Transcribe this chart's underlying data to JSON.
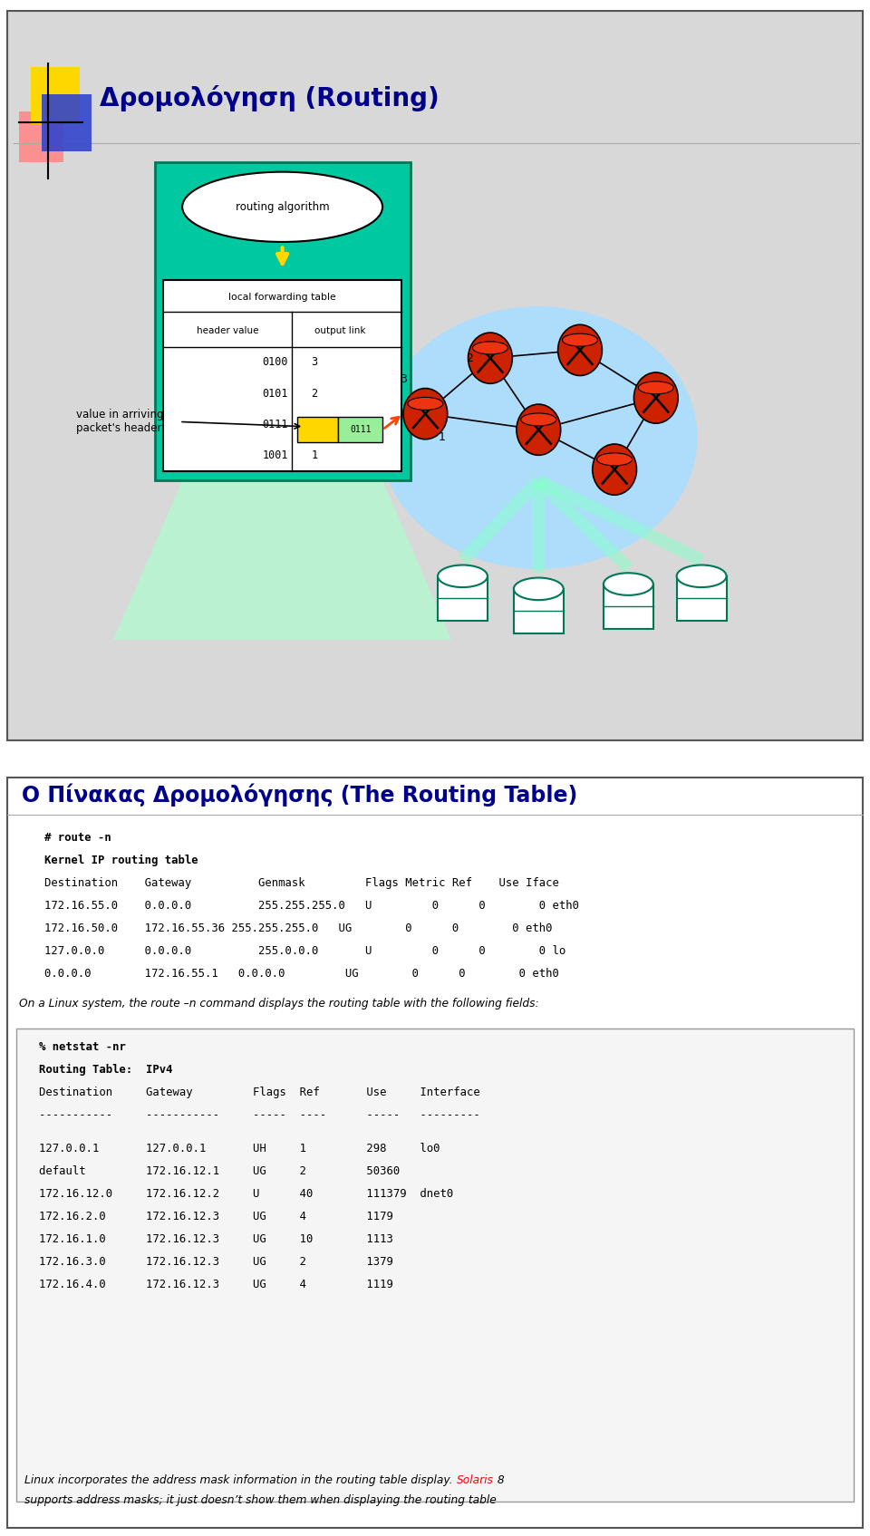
{
  "slide1_title": "Δρομολόγηση (Routing)",
  "slide2_title": "Ο Πίνακας Δρομολόγησης (The Routing Table)",
  "title_color": "#00008B",
  "teal_color": "#00C8A0",
  "route_bold_lines": [
    "# route -n",
    "Kernel IP routing table"
  ],
  "route_header": "Destination    Gateway          Genmask         Flags Metric Ref    Use Iface",
  "route_rows": [
    "172.16.55.0    0.0.0.0          255.255.255.0   U         0      0        0 eth0",
    "172.16.50.0    172.16.55.36 255.255.255.0   UG        0      0        0 eth0",
    "127.0.0.0      0.0.0.0          255.0.0.0       U         0      0        0 lo",
    "0.0.0.0        172.16.55.1   0.0.0.0         UG        0      0        0 eth0"
  ],
  "between_text": "On a Linux system, the route –n command displays the routing table with the following fields:",
  "netstat_bold": [
    "% netstat -nr",
    "Routing Table:  IPv4"
  ],
  "netstat_header": "Destination     Gateway         Flags  Ref       Use     Interface",
  "netstat_dashes": "-----------     -----------     -----  ----      -----   ---------",
  "netstat_rows": [
    "127.0.0.1       127.0.0.1       UH     1         298     lo0",
    "default         172.16.12.1     UG     2         50360",
    "172.16.12.0     172.16.12.2     U      40        111379  dnet0",
    "172.16.2.0      172.16.12.3     UG     4         1179",
    "172.16.1.0      172.16.12.3     UG     10        1113",
    "172.16.3.0      172.16.12.3     UG     2         1379",
    "172.16.4.0      172.16.12.3     UG     4         1119"
  ],
  "footer_normal": "Linux incorporates the address mask information in the routing table display. ",
  "footer_solaris": "Solaris",
  "footer_after": " 8",
  "footer_line2": "supports address masks; it just doesn’t show them when displaying the routing table"
}
